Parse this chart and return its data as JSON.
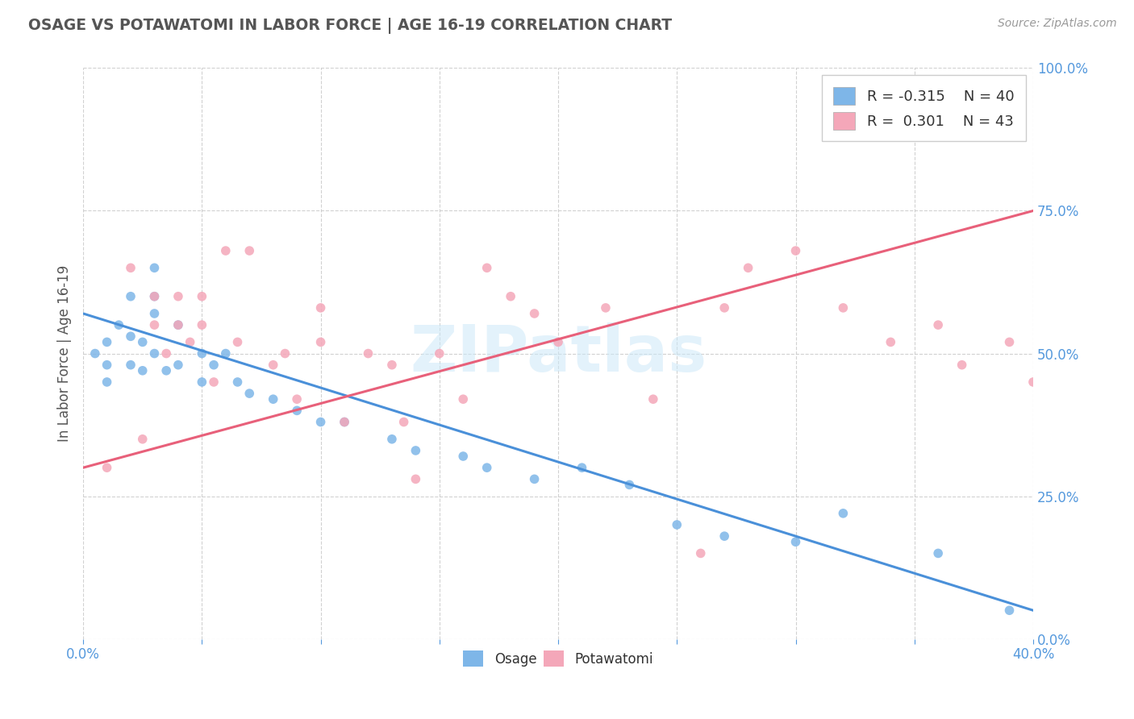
{
  "title": "OSAGE VS POTAWATOMI IN LABOR FORCE | AGE 16-19 CORRELATION CHART",
  "source_text": "Source: ZipAtlas.com",
  "ylabel_left": "In Labor Force | Age 16-19",
  "xlim": [
    0.0,
    0.4
  ],
  "ylim": [
    0.0,
    1.0
  ],
  "osage_color": "#7EB6E8",
  "potawatomi_color": "#F4A7B9",
  "osage_line_color": "#4A90D9",
  "potawatomi_line_color": "#E8607A",
  "osage_R": -0.315,
  "osage_N": 40,
  "potawatomi_R": 0.301,
  "potawatomi_N": 43,
  "watermark_text": "ZIPatlas",
  "background_color": "#ffffff",
  "grid_color": "#cccccc",
  "title_color": "#555555",
  "osage_x": [
    0.005,
    0.01,
    0.01,
    0.01,
    0.015,
    0.02,
    0.02,
    0.02,
    0.025,
    0.025,
    0.03,
    0.03,
    0.03,
    0.03,
    0.035,
    0.04,
    0.04,
    0.05,
    0.05,
    0.055,
    0.06,
    0.065,
    0.07,
    0.08,
    0.09,
    0.1,
    0.11,
    0.13,
    0.14,
    0.16,
    0.17,
    0.19,
    0.21,
    0.23,
    0.25,
    0.27,
    0.3,
    0.32,
    0.36,
    0.39
  ],
  "osage_y": [
    0.5,
    0.52,
    0.48,
    0.45,
    0.55,
    0.6,
    0.53,
    0.48,
    0.52,
    0.47,
    0.65,
    0.6,
    0.57,
    0.5,
    0.47,
    0.55,
    0.48,
    0.5,
    0.45,
    0.48,
    0.5,
    0.45,
    0.43,
    0.42,
    0.4,
    0.38,
    0.38,
    0.35,
    0.33,
    0.32,
    0.3,
    0.28,
    0.3,
    0.27,
    0.2,
    0.18,
    0.17,
    0.22,
    0.15,
    0.05
  ],
  "potawatomi_x": [
    0.01,
    0.02,
    0.025,
    0.03,
    0.03,
    0.035,
    0.04,
    0.04,
    0.045,
    0.05,
    0.05,
    0.055,
    0.06,
    0.065,
    0.07,
    0.08,
    0.085,
    0.09,
    0.1,
    0.1,
    0.11,
    0.12,
    0.13,
    0.135,
    0.14,
    0.15,
    0.16,
    0.17,
    0.18,
    0.19,
    0.2,
    0.22,
    0.24,
    0.26,
    0.27,
    0.28,
    0.3,
    0.32,
    0.34,
    0.36,
    0.37,
    0.39,
    0.4
  ],
  "potawatomi_y": [
    0.3,
    0.65,
    0.35,
    0.6,
    0.55,
    0.5,
    0.6,
    0.55,
    0.52,
    0.6,
    0.55,
    0.45,
    0.68,
    0.52,
    0.68,
    0.48,
    0.5,
    0.42,
    0.58,
    0.52,
    0.38,
    0.5,
    0.48,
    0.38,
    0.28,
    0.5,
    0.42,
    0.65,
    0.6,
    0.57,
    0.52,
    0.58,
    0.42,
    0.15,
    0.58,
    0.65,
    0.68,
    0.58,
    0.52,
    0.55,
    0.48,
    0.52,
    0.45
  ],
  "osage_line_x0": 0.0,
  "osage_line_x1": 0.4,
  "osage_line_y0": 0.57,
  "osage_line_y1": 0.05,
  "potawatomi_line_x0": 0.0,
  "potawatomi_line_x1": 0.4,
  "potawatomi_line_y0": 0.3,
  "potawatomi_line_y1": 0.75
}
